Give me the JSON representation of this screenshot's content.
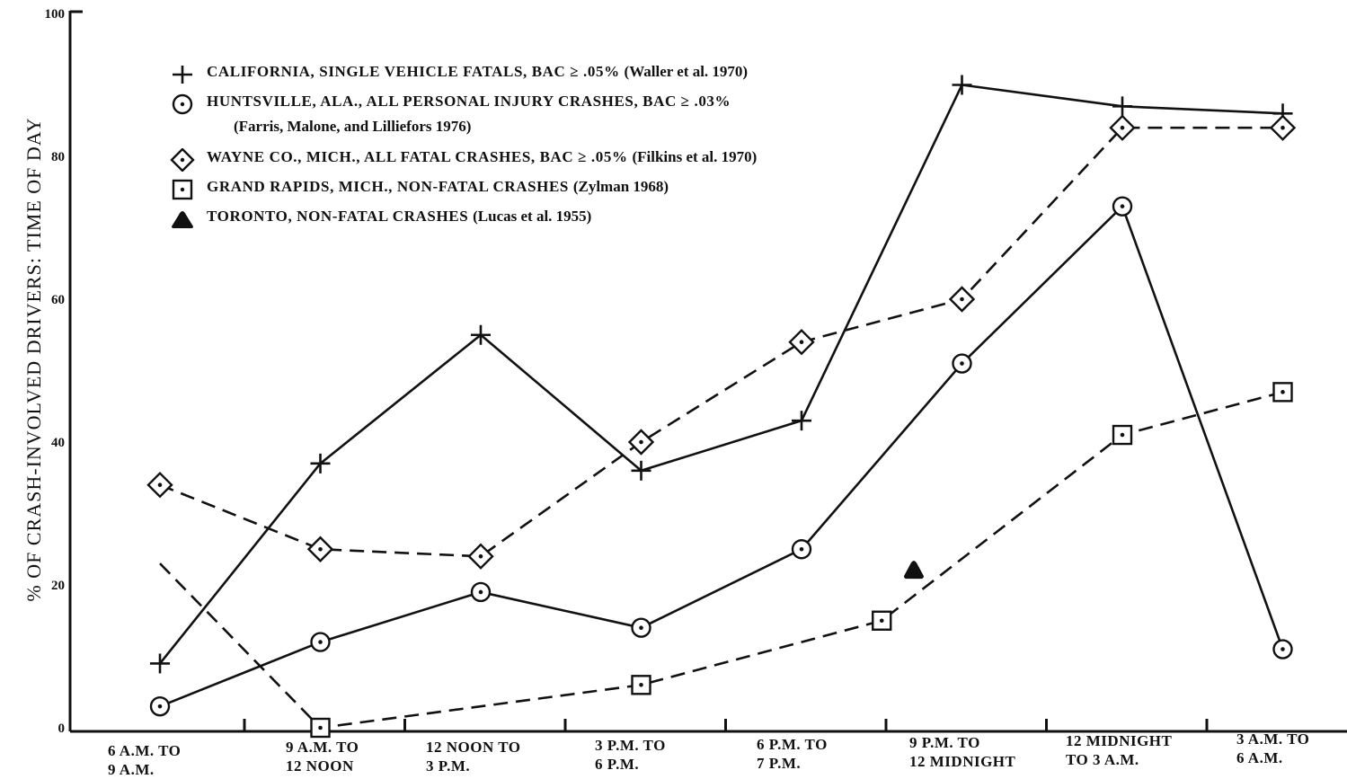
{
  "chart_data": {
    "type": "line",
    "ylabel": "% OF CRASH-INVOLVED DRIVERS: TIME OF DAY",
    "xlabel": "",
    "ylim": [
      0,
      100
    ],
    "yticks": [
      "0",
      "20",
      "40",
      "60",
      "80",
      "100"
    ],
    "categories": [
      [
        "6 A.M. TO",
        "9 A.M."
      ],
      [
        "9 A.M. TO",
        "12 NOON"
      ],
      [
        "12 NOON TO",
        "3 P.M."
      ],
      [
        "3 P.M. TO",
        "6 P.M."
      ],
      [
        "6 P.M. TO",
        "7 P.M."
      ],
      [
        "9 P.M. TO",
        "12 MIDNIGHT"
      ],
      [
        "12 MIDNIGHT",
        "TO 3 A.M."
      ],
      [
        "3 A.M. TO",
        "6 A.M."
      ]
    ],
    "series": [
      {
        "name": "CALIFORNIA, SINGLE VEHICLE FATALS, BAC ≥ .05%",
        "citation": "(Waller et al. 1970)",
        "marker": "plus",
        "dash": "solid",
        "points": [
          [
            0,
            9
          ],
          [
            1,
            37
          ],
          [
            2,
            55
          ],
          [
            3,
            36
          ],
          [
            4,
            43
          ],
          [
            5,
            90
          ],
          [
            6,
            87
          ],
          [
            7,
            86
          ]
        ]
      },
      {
        "name": "HUNTSVILLE, ALA., ALL PERSONAL INJURY CRASHES, BAC ≥ .03%",
        "citation": "(Farris, Malone, and Lilliefors 1976)",
        "marker": "circle",
        "dash": "solid",
        "points": [
          [
            0,
            3
          ],
          [
            1,
            12
          ],
          [
            2,
            19
          ],
          [
            3,
            14
          ],
          [
            4,
            25
          ],
          [
            5,
            51
          ],
          [
            6,
            73
          ],
          [
            7,
            11
          ]
        ]
      },
      {
        "name": "WAYNE CO., MICH., ALL FATAL CRASHES, BAC ≥ .05%",
        "citation": "(Filkins et al. 1970)",
        "marker": "diamond",
        "dash": "dashed",
        "points": [
          [
            0,
            34
          ],
          [
            1,
            25
          ],
          [
            2,
            24
          ],
          [
            3,
            40
          ],
          [
            4,
            54
          ],
          [
            5,
            60
          ],
          [
            6,
            84
          ],
          [
            7,
            84
          ]
        ]
      },
      {
        "name": "GRAND RAPIDS, MICH., NON-FATAL CRASHES",
        "citation": "(Zylman 1968)",
        "marker": "square",
        "dash": "dashed",
        "points": [
          [
            0,
            23
          ],
          [
            1,
            0
          ],
          [
            3,
            6
          ],
          [
            4.5,
            15
          ],
          [
            6,
            41
          ],
          [
            7,
            47
          ]
        ]
      },
      {
        "name": "TORONTO, NON-FATAL CRASHES",
        "citation": "(Lucas et al. 1955)",
        "marker": "triangle",
        "dash": "none",
        "points": [
          [
            4.7,
            22
          ]
        ]
      }
    ]
  },
  "legend": {
    "placement": "top-left",
    "huntsville_sub": "(Farris, Malone, and Lilliefors 1976)"
  },
  "colors": {
    "ink": "#111111",
    "background": "#ffffff"
  }
}
